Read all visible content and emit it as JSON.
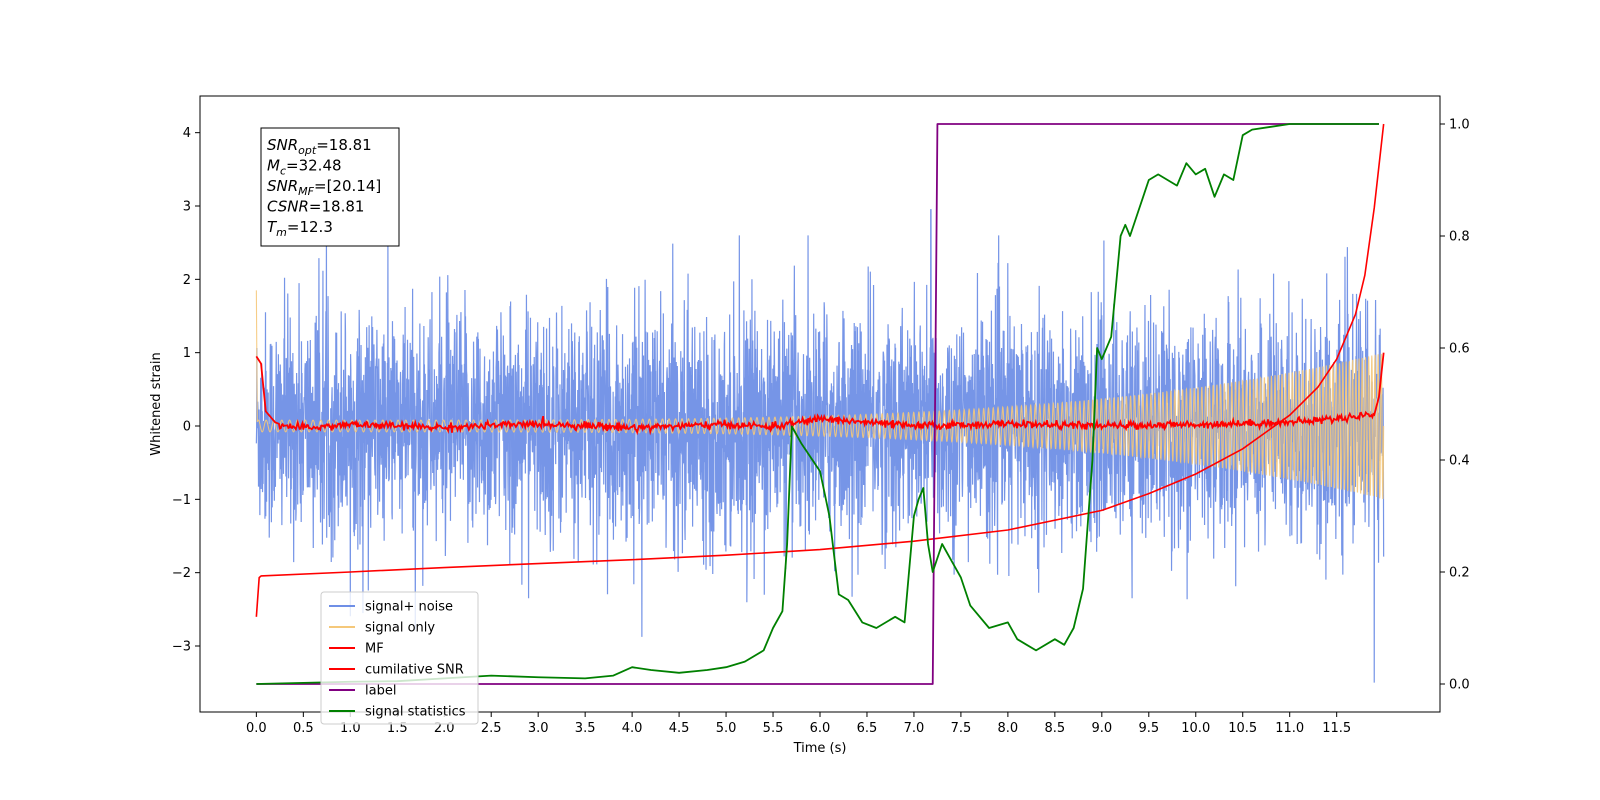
{
  "chart_data": {
    "type": "line",
    "title": "",
    "xlabel": "Time (s)",
    "ylabel": "Whitened strain",
    "y2label": "",
    "xlim": [
      -0.6,
      12.6
    ],
    "ylim": [
      -3.9,
      4.5
    ],
    "y2lim": [
      -0.05,
      1.05
    ],
    "x_ticks": [
      0.0,
      0.5,
      1.0,
      1.5,
      2.0,
      2.5,
      3.0,
      3.5,
      4.0,
      4.5,
      5.0,
      5.5,
      6.0,
      6.5,
      7.0,
      7.5,
      8.0,
      8.5,
      9.0,
      9.5,
      10.0,
      10.5,
      11.0,
      11.5
    ],
    "x_tick_labels": [
      "0.0",
      "0.5",
      "1.0",
      "1.5",
      "2.0",
      "2.5",
      "3.0",
      "3.5",
      "4.0",
      "4.5",
      "5.0",
      "5.5",
      "6.0",
      "6.5",
      "7.0",
      "7.5",
      "8.0",
      "8.5",
      "9.0",
      "9.5",
      "10.0",
      "10.5",
      "11.0",
      "11.5"
    ],
    "y_ticks": [
      -3,
      -2,
      -1,
      0,
      1,
      2,
      3,
      4
    ],
    "y_tick_labels": [
      "−3",
      "−2",
      "−1",
      "0",
      "1",
      "2",
      "3",
      "4"
    ],
    "y2_ticks": [
      0.0,
      0.2,
      0.4,
      0.6,
      0.8,
      1.0
    ],
    "y2_tick_labels": [
      "0.0",
      "0.2",
      "0.4",
      "0.6",
      "0.8",
      "1.0"
    ],
    "grid": false,
    "legend_position": "lower-left",
    "annotation": {
      "lines": [
        {
          "name": "SNR",
          "sub": "opt",
          "value": "=18.81"
        },
        {
          "name": "M",
          "sub": "c",
          "value": "=32.48"
        },
        {
          "name": "SNR",
          "sub": "MF",
          "value": "=[20.14]"
        },
        {
          "name": "CSNR",
          "sub": "",
          "value": "=18.81"
        },
        {
          "name": "T",
          "sub": "m",
          "value": "=12.3"
        }
      ]
    },
    "series": [
      {
        "name": "signal+ noise",
        "axis": "left",
        "color": "#6f8fe6",
        "kind": "noise",
        "t_start": 0.0,
        "t_end": 12.0,
        "sigma": 0.9,
        "typical_peak": 2.3,
        "max_peak": 2.95,
        "max_peak_t": 7.18,
        "min_peak": -3.5,
        "min_peak_t": 11.9,
        "note_end_envelope": 1.8
      },
      {
        "name": "signal only",
        "axis": "left",
        "color": "#f5c87a",
        "kind": "chirp",
        "t_start": 0.0,
        "t_end": 12.0,
        "amp_start": 0.08,
        "amp_end": 1.0,
        "initial_spike": 1.85
      },
      {
        "name": "MF",
        "axis": "left",
        "color": "#ff0000",
        "kind": "matched-filter",
        "t_start": 0.0,
        "t_end": 12.0,
        "x": [
          0.0,
          0.05,
          0.1,
          0.2,
          0.3,
          0.5,
          1.0,
          2.0,
          3.0,
          4.0,
          5.0,
          5.5,
          6.0,
          7.0,
          8.0,
          9.0,
          10.0,
          11.0,
          11.5,
          11.8,
          11.9,
          11.95,
          12.0
        ],
        "y": [
          0.95,
          0.85,
          0.2,
          0.05,
          0.0,
          -0.03,
          0.02,
          -0.02,
          0.03,
          -0.02,
          0.02,
          -0.01,
          0.1,
          0.0,
          0.03,
          0.0,
          0.02,
          0.05,
          0.1,
          0.15,
          0.15,
          0.4,
          1.0
        ]
      },
      {
        "name": "cumilative SNR",
        "axis": "right",
        "color": "#ff0000",
        "kind": "line",
        "x": [
          0.0,
          0.03,
          0.05,
          1.0,
          2.0,
          3.0,
          4.0,
          5.0,
          6.0,
          7.0,
          8.0,
          9.0,
          9.5,
          10.0,
          10.5,
          11.0,
          11.3,
          11.5,
          11.7,
          11.8,
          11.9,
          12.0
        ],
        "y": [
          0.12,
          0.19,
          0.193,
          0.2,
          0.208,
          0.215,
          0.222,
          0.23,
          0.24,
          0.255,
          0.275,
          0.31,
          0.34,
          0.375,
          0.42,
          0.48,
          0.53,
          0.58,
          0.66,
          0.73,
          0.85,
          1.0
        ]
      },
      {
        "name": "label",
        "axis": "right",
        "color": "#800080",
        "kind": "step",
        "x": [
          0.0,
          7.2,
          7.25,
          11.95
        ],
        "y": [
          0.0,
          0.0,
          1.0,
          1.0
        ]
      },
      {
        "name": "signal statistics",
        "axis": "right",
        "color": "#008000",
        "kind": "line",
        "x": [
          0.0,
          0.5,
          1.0,
          1.5,
          2.0,
          2.5,
          3.0,
          3.5,
          3.8,
          4.0,
          4.2,
          4.5,
          4.8,
          5.0,
          5.2,
          5.4,
          5.5,
          5.6,
          5.65,
          5.7,
          5.8,
          6.0,
          6.1,
          6.2,
          6.3,
          6.45,
          6.6,
          6.8,
          6.9,
          7.0,
          7.05,
          7.1,
          7.15,
          7.2,
          7.3,
          7.4,
          7.5,
          7.6,
          7.8,
          8.0,
          8.1,
          8.2,
          8.3,
          8.5,
          8.6,
          8.7,
          8.8,
          8.9,
          8.95,
          9.0,
          9.1,
          9.2,
          9.25,
          9.3,
          9.4,
          9.5,
          9.6,
          9.7,
          9.8,
          9.9,
          10.0,
          10.1,
          10.2,
          10.3,
          10.4,
          10.5,
          10.6,
          10.8,
          11.0,
          11.5,
          11.95
        ],
        "y": [
          0.0,
          0.002,
          0.004,
          0.005,
          0.01,
          0.015,
          0.012,
          0.01,
          0.015,
          0.03,
          0.025,
          0.02,
          0.025,
          0.03,
          0.04,
          0.06,
          0.1,
          0.13,
          0.25,
          0.46,
          0.43,
          0.38,
          0.3,
          0.16,
          0.15,
          0.11,
          0.1,
          0.12,
          0.11,
          0.3,
          0.33,
          0.35,
          0.25,
          0.2,
          0.25,
          0.22,
          0.19,
          0.14,
          0.1,
          0.11,
          0.08,
          0.07,
          0.06,
          0.08,
          0.07,
          0.1,
          0.17,
          0.4,
          0.6,
          0.58,
          0.62,
          0.8,
          0.82,
          0.8,
          0.85,
          0.9,
          0.91,
          0.9,
          0.89,
          0.93,
          0.91,
          0.92,
          0.87,
          0.91,
          0.9,
          0.98,
          0.99,
          0.995,
          1.0,
          1.0,
          1.0
        ]
      }
    ]
  }
}
